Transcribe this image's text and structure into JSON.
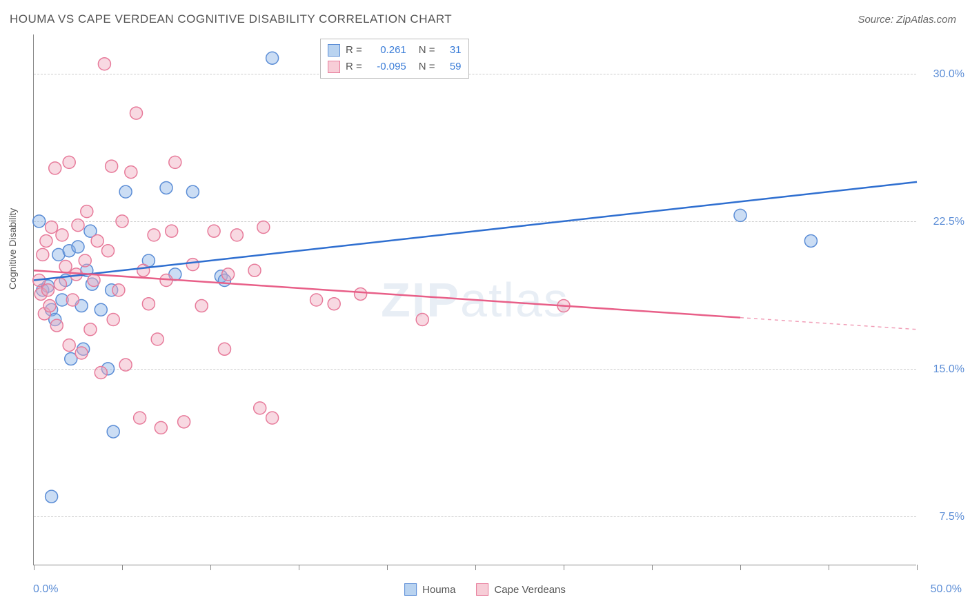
{
  "title": "HOUMA VS CAPE VERDEAN COGNITIVE DISABILITY CORRELATION CHART",
  "source": "Source: ZipAtlas.com",
  "y_axis_label": "Cognitive Disability",
  "watermark": {
    "zip": "ZIP",
    "atlas": "atlas"
  },
  "chart": {
    "type": "scatter",
    "xlim": [
      0,
      50
    ],
    "ylim": [
      5,
      32
    ],
    "x_min_label": "0.0%",
    "x_max_label": "50.0%",
    "x_tick_positions": [
      0,
      5,
      10,
      15,
      20,
      25,
      30,
      35,
      40,
      45,
      50
    ],
    "y_gridlines": [
      {
        "value": 7.5,
        "label": "7.5%"
      },
      {
        "value": 15.0,
        "label": "15.0%"
      },
      {
        "value": 22.5,
        "label": "22.5%"
      },
      {
        "value": 30.0,
        "label": "30.0%"
      }
    ],
    "background_color": "#ffffff",
    "grid_color": "#cccccc",
    "axis_color": "#888888",
    "tick_label_color": "#5b8dd6",
    "title_color": "#555555",
    "title_fontsize": 17,
    "label_fontsize": 14,
    "tick_fontsize": 16,
    "legend_box": {
      "rows": [
        {
          "swatch_fill": "#b9d3f0",
          "swatch_border": "#5b8dd6",
          "r_label": "R =",
          "r_value": "0.261",
          "n_label": "N =",
          "n_value": "31"
        },
        {
          "swatch_fill": "#f7cdd7",
          "swatch_border": "#e77a9a",
          "r_label": "R =",
          "r_value": "-0.095",
          "n_label": "N =",
          "n_value": "59"
        }
      ]
    },
    "bottom_legend": [
      {
        "swatch_fill": "#b9d3f0",
        "swatch_border": "#5b8dd6",
        "label": "Houma"
      },
      {
        "swatch_fill": "#f7cdd7",
        "swatch_border": "#e77a9a",
        "label": "Cape Verdeans"
      }
    ],
    "series": [
      {
        "name": "Houma",
        "marker_fill": "rgba(140,180,230,0.45)",
        "marker_stroke": "#5b8dd6",
        "marker_radius": 9,
        "line_color": "#2f6fd0",
        "line_width": 2.5,
        "regression": {
          "x1": 0,
          "y1": 19.5,
          "x2": 50,
          "y2": 24.5,
          "solid_until_x": 50
        },
        "points": [
          [
            0.3,
            22.5
          ],
          [
            0.5,
            19.0
          ],
          [
            0.8,
            19.2
          ],
          [
            1.0,
            18.0
          ],
          [
            1.0,
            8.5
          ],
          [
            1.2,
            17.5
          ],
          [
            1.4,
            20.8
          ],
          [
            1.6,
            18.5
          ],
          [
            1.8,
            19.5
          ],
          [
            2.0,
            21.0
          ],
          [
            2.1,
            15.5
          ],
          [
            2.5,
            21.2
          ],
          [
            2.7,
            18.2
          ],
          [
            2.8,
            16.0
          ],
          [
            3.0,
            20.0
          ],
          [
            3.2,
            22.0
          ],
          [
            3.3,
            19.3
          ],
          [
            3.8,
            18.0
          ],
          [
            4.2,
            15.0
          ],
          [
            4.4,
            19.0
          ],
          [
            4.5,
            11.8
          ],
          [
            5.2,
            24.0
          ],
          [
            6.5,
            20.5
          ],
          [
            7.5,
            24.2
          ],
          [
            8.0,
            19.8
          ],
          [
            9.0,
            24.0
          ],
          [
            10.6,
            19.7
          ],
          [
            10.8,
            19.5
          ],
          [
            13.5,
            30.8
          ],
          [
            40.0,
            22.8
          ],
          [
            44.0,
            21.5
          ]
        ]
      },
      {
        "name": "Cape Verdeans",
        "marker_fill": "rgba(240,170,190,0.45)",
        "marker_stroke": "#e77a9a",
        "marker_radius": 9,
        "line_color": "#e85f88",
        "line_width": 2.5,
        "regression": {
          "x1": 0,
          "y1": 20.0,
          "x2": 50,
          "y2": 17.0,
          "solid_until_x": 40
        },
        "points": [
          [
            0.3,
            19.5
          ],
          [
            0.4,
            18.8
          ],
          [
            0.5,
            20.8
          ],
          [
            0.6,
            17.8
          ],
          [
            0.7,
            21.5
          ],
          [
            0.8,
            19.0
          ],
          [
            0.9,
            18.2
          ],
          [
            1.0,
            22.2
          ],
          [
            1.2,
            25.2
          ],
          [
            1.3,
            17.2
          ],
          [
            1.5,
            19.3
          ],
          [
            1.6,
            21.8
          ],
          [
            1.8,
            20.2
          ],
          [
            2.0,
            25.5
          ],
          [
            2.0,
            16.2
          ],
          [
            2.2,
            18.5
          ],
          [
            2.4,
            19.8
          ],
          [
            2.5,
            22.3
          ],
          [
            2.7,
            15.8
          ],
          [
            2.9,
            20.5
          ],
          [
            3.0,
            23.0
          ],
          [
            3.2,
            17.0
          ],
          [
            3.4,
            19.5
          ],
          [
            3.6,
            21.5
          ],
          [
            3.8,
            14.8
          ],
          [
            4.0,
            30.5
          ],
          [
            4.2,
            21.0
          ],
          [
            4.4,
            25.3
          ],
          [
            4.5,
            17.5
          ],
          [
            4.8,
            19.0
          ],
          [
            5.0,
            22.5
          ],
          [
            5.2,
            15.2
          ],
          [
            5.5,
            25.0
          ],
          [
            5.8,
            28.0
          ],
          [
            6.0,
            12.5
          ],
          [
            6.2,
            20.0
          ],
          [
            6.5,
            18.3
          ],
          [
            6.8,
            21.8
          ],
          [
            7.0,
            16.5
          ],
          [
            7.2,
            12.0
          ],
          [
            7.5,
            19.5
          ],
          [
            7.8,
            22.0
          ],
          [
            8.0,
            25.5
          ],
          [
            8.5,
            12.3
          ],
          [
            9.0,
            20.3
          ],
          [
            9.5,
            18.2
          ],
          [
            10.2,
            22.0
          ],
          [
            10.8,
            16.0
          ],
          [
            11.0,
            19.8
          ],
          [
            11.5,
            21.8
          ],
          [
            12.5,
            20.0
          ],
          [
            12.8,
            13.0
          ],
          [
            13.0,
            22.2
          ],
          [
            13.5,
            12.5
          ],
          [
            16.0,
            18.5
          ],
          [
            17.0,
            18.3
          ],
          [
            18.5,
            18.8
          ],
          [
            22.0,
            17.5
          ],
          [
            30.0,
            18.2
          ]
        ]
      }
    ]
  }
}
